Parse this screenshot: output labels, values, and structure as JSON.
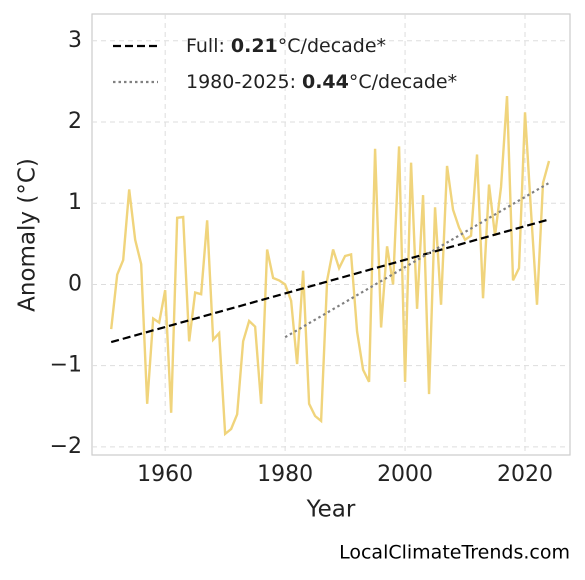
{
  "chart_data": {
    "type": "line",
    "xlabel": "Year",
    "ylabel": "Anomaly (°C)",
    "source": "LocalClimateTrends.com",
    "xlim": [
      1947.8,
      2027.5
    ],
    "ylim": [
      -2.1,
      3.33
    ],
    "xticks": [
      1960,
      1980,
      2000,
      2020
    ],
    "yticks": [
      {
        "value": -2,
        "label": "−2"
      },
      {
        "value": -1,
        "label": "−1"
      },
      0,
      1,
      2,
      3
    ],
    "grid": true,
    "legend_position": "upper left",
    "series": [
      {
        "color": "#f0d47c",
        "x": [
          1951,
          1952,
          1953,
          1954,
          1955,
          1956,
          1957,
          1958,
          1959,
          1960,
          1961,
          1962,
          1963,
          1964,
          1965,
          1966,
          1967,
          1968,
          1969,
          1970,
          1971,
          1972,
          1973,
          1974,
          1975,
          1976,
          1977,
          1978,
          1979,
          1980,
          1981,
          1982,
          1983,
          1984,
          1985,
          1986,
          1987,
          1988,
          1989,
          1990,
          1991,
          1992,
          1993,
          1994,
          1995,
          1996,
          1997,
          1998,
          1999,
          2000,
          2001,
          2002,
          2003,
          2004,
          2005,
          2006,
          2007,
          2008,
          2009,
          2010,
          2011,
          2012,
          2013,
          2014,
          2015,
          2016,
          2017,
          2018,
          2019,
          2020,
          2021,
          2022,
          2023,
          2024
        ],
        "values": [
          -0.55,
          0.12,
          0.3,
          1.17,
          0.55,
          0.25,
          -1.47,
          -0.42,
          -0.47,
          -0.07,
          -1.58,
          0.82,
          0.83,
          -0.7,
          -0.1,
          -0.12,
          0.79,
          -0.68,
          -0.6,
          -1.84,
          -1.78,
          -1.6,
          -0.7,
          -0.45,
          -0.52,
          -1.47,
          0.43,
          0.08,
          0.05,
          0.0,
          -0.2,
          -0.98,
          0.17,
          -1.47,
          -1.62,
          -1.68,
          0.05,
          0.43,
          0.2,
          0.35,
          0.37,
          -0.58,
          -1.05,
          -1.2,
          1.67,
          -0.53,
          0.47,
          0.0,
          1.7,
          -1.2,
          1.5,
          -0.3,
          1.1,
          -1.35,
          0.95,
          -0.25,
          1.46,
          0.92,
          0.7,
          0.55,
          0.6,
          1.6,
          -0.17,
          1.23,
          0.6,
          1.2,
          2.32,
          0.05,
          0.2,
          2.12,
          0.9,
          -0.25,
          1.25,
          1.52
        ]
      },
      {
        "name": "Full:",
        "rate": "0.21",
        "unit": "°C/decade*",
        "color": "#000000",
        "style": "dashed",
        "x": [
          1951,
          2024
        ],
        "values": [
          -0.71,
          0.8
        ]
      },
      {
        "name": "1980-2025:",
        "rate": "0.44",
        "unit": "°C/decade*",
        "color": "#808080",
        "style": "dotted",
        "x": [
          1980,
          2024
        ],
        "values": [
          -0.65,
          1.25
        ]
      }
    ]
  }
}
